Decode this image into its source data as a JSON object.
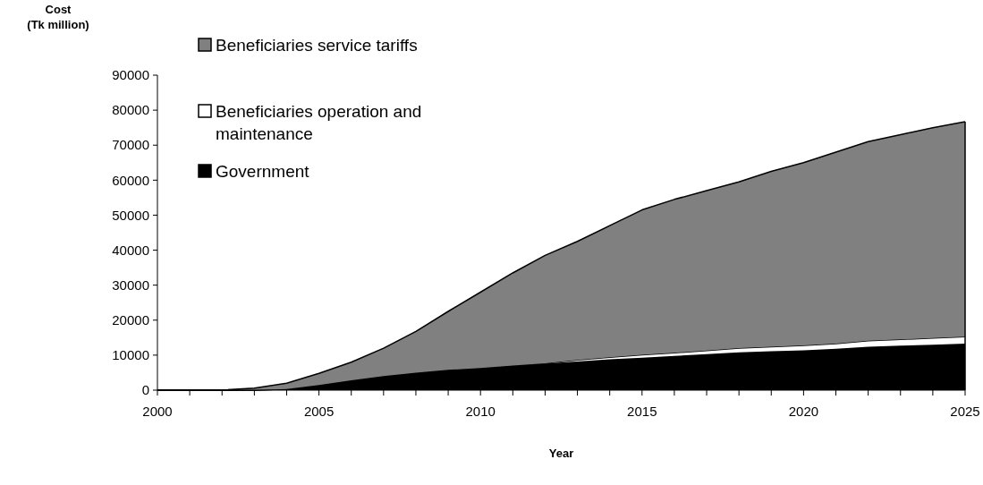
{
  "chart_data": {
    "type": "area",
    "stacked": true,
    "xlabel": "Year",
    "ylabel": "Cost\n(Tk million)",
    "x": [
      2000,
      2001,
      2002,
      2003,
      2004,
      2005,
      2006,
      2007,
      2008,
      2009,
      2010,
      2011,
      2012,
      2013,
      2014,
      2015,
      2016,
      2017,
      2018,
      2019,
      2020,
      2021,
      2022,
      2023,
      2024,
      2025
    ],
    "series": [
      {
        "name": "Government",
        "color": "#000000",
        "values": [
          0,
          0,
          0,
          0,
          300,
          1500,
          2800,
          4000,
          5000,
          5800,
          6300,
          7000,
          7600,
          8200,
          8800,
          9300,
          9800,
          10300,
          10800,
          11100,
          11400,
          11800,
          12400,
          12700,
          13000,
          13300
        ]
      },
      {
        "name": "Beneficiaries operation and maintenance",
        "color": "#ffffff",
        "values": [
          0,
          0,
          0,
          0,
          0,
          0,
          0,
          0,
          0,
          0,
          0,
          0,
          100,
          400,
          600,
          800,
          900,
          1000,
          1200,
          1300,
          1400,
          1500,
          1700,
          1800,
          1900,
          2000
        ]
      },
      {
        "name": "Beneficiaries service tariffs",
        "color": "#808080",
        "values": [
          0,
          0,
          0,
          600,
          1700,
          3300,
          5200,
          8000,
          11800,
          16700,
          21700,
          26500,
          30800,
          33900,
          37600,
          41400,
          43800,
          45700,
          47500,
          50100,
          52200,
          54700,
          56900,
          58500,
          60100,
          61400
        ]
      }
    ],
    "xlim": [
      2000,
      2025
    ],
    "xticks": [
      2000,
      {
        "value": 2001,
        "label": null
      },
      {
        "value": 2002,
        "label": null
      },
      {
        "value": 2003,
        "label": null
      },
      {
        "value": 2004,
        "label": null
      },
      2005,
      {
        "value": 2006,
        "label": null
      },
      {
        "value": 2007,
        "label": null
      },
      {
        "value": 2008,
        "label": null
      },
      {
        "value": 2009,
        "label": null
      },
      2010,
      {
        "value": 2011,
        "label": null
      },
      {
        "value": 2012,
        "label": null
      },
      {
        "value": 2013,
        "label": null
      },
      {
        "value": 2014,
        "label": null
      },
      2015,
      {
        "value": 2016,
        "label": null
      },
      {
        "value": 2017,
        "label": null
      },
      {
        "value": 2018,
        "label": null
      },
      {
        "value": 2019,
        "label": null
      },
      2020,
      {
        "value": 2021,
        "label": null
      },
      {
        "value": 2022,
        "label": null
      },
      {
        "value": 2023,
        "label": null
      },
      {
        "value": 2024,
        "label": null
      },
      2025
    ],
    "ylim": [
      0,
      90000
    ],
    "yticks": [
      0,
      10000,
      20000,
      30000,
      40000,
      50000,
      60000,
      70000,
      80000,
      90000
    ],
    "legend": "top left",
    "grid": false
  }
}
